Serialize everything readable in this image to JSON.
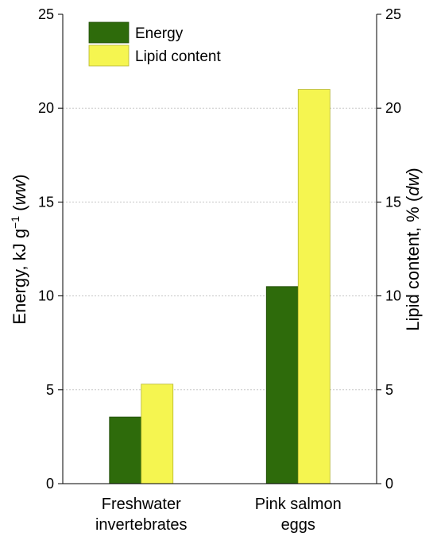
{
  "chart_data": {
    "type": "bar",
    "categories": [
      "Freshwater invertebrates",
      "Pink salmon eggs"
    ],
    "category_lines": [
      [
        "Freshwater",
        "invertebrates"
      ],
      [
        "Pink salmon",
        "eggs"
      ]
    ],
    "series": [
      {
        "name": "Energy",
        "axis": "left",
        "values": [
          3.55,
          10.5
        ],
        "color": "#2e6b0b"
      },
      {
        "name": "Lipid content",
        "axis": "right",
        "values": [
          5.3,
          21.0
        ],
        "color": "#f5f550"
      }
    ],
    "ylabel_left": {
      "main": "Energy, kJ g",
      "sup": "−1",
      "paren": "ww"
    },
    "ylabel_right": {
      "main": "Lipid content, % ",
      "paren": "dw"
    },
    "ylim_left": [
      0,
      25
    ],
    "ylim_right": [
      0,
      25
    ],
    "yticks": [
      "0",
      "5",
      "10",
      "15",
      "20",
      "25"
    ],
    "grid": true,
    "legend_position": "top-left"
  }
}
